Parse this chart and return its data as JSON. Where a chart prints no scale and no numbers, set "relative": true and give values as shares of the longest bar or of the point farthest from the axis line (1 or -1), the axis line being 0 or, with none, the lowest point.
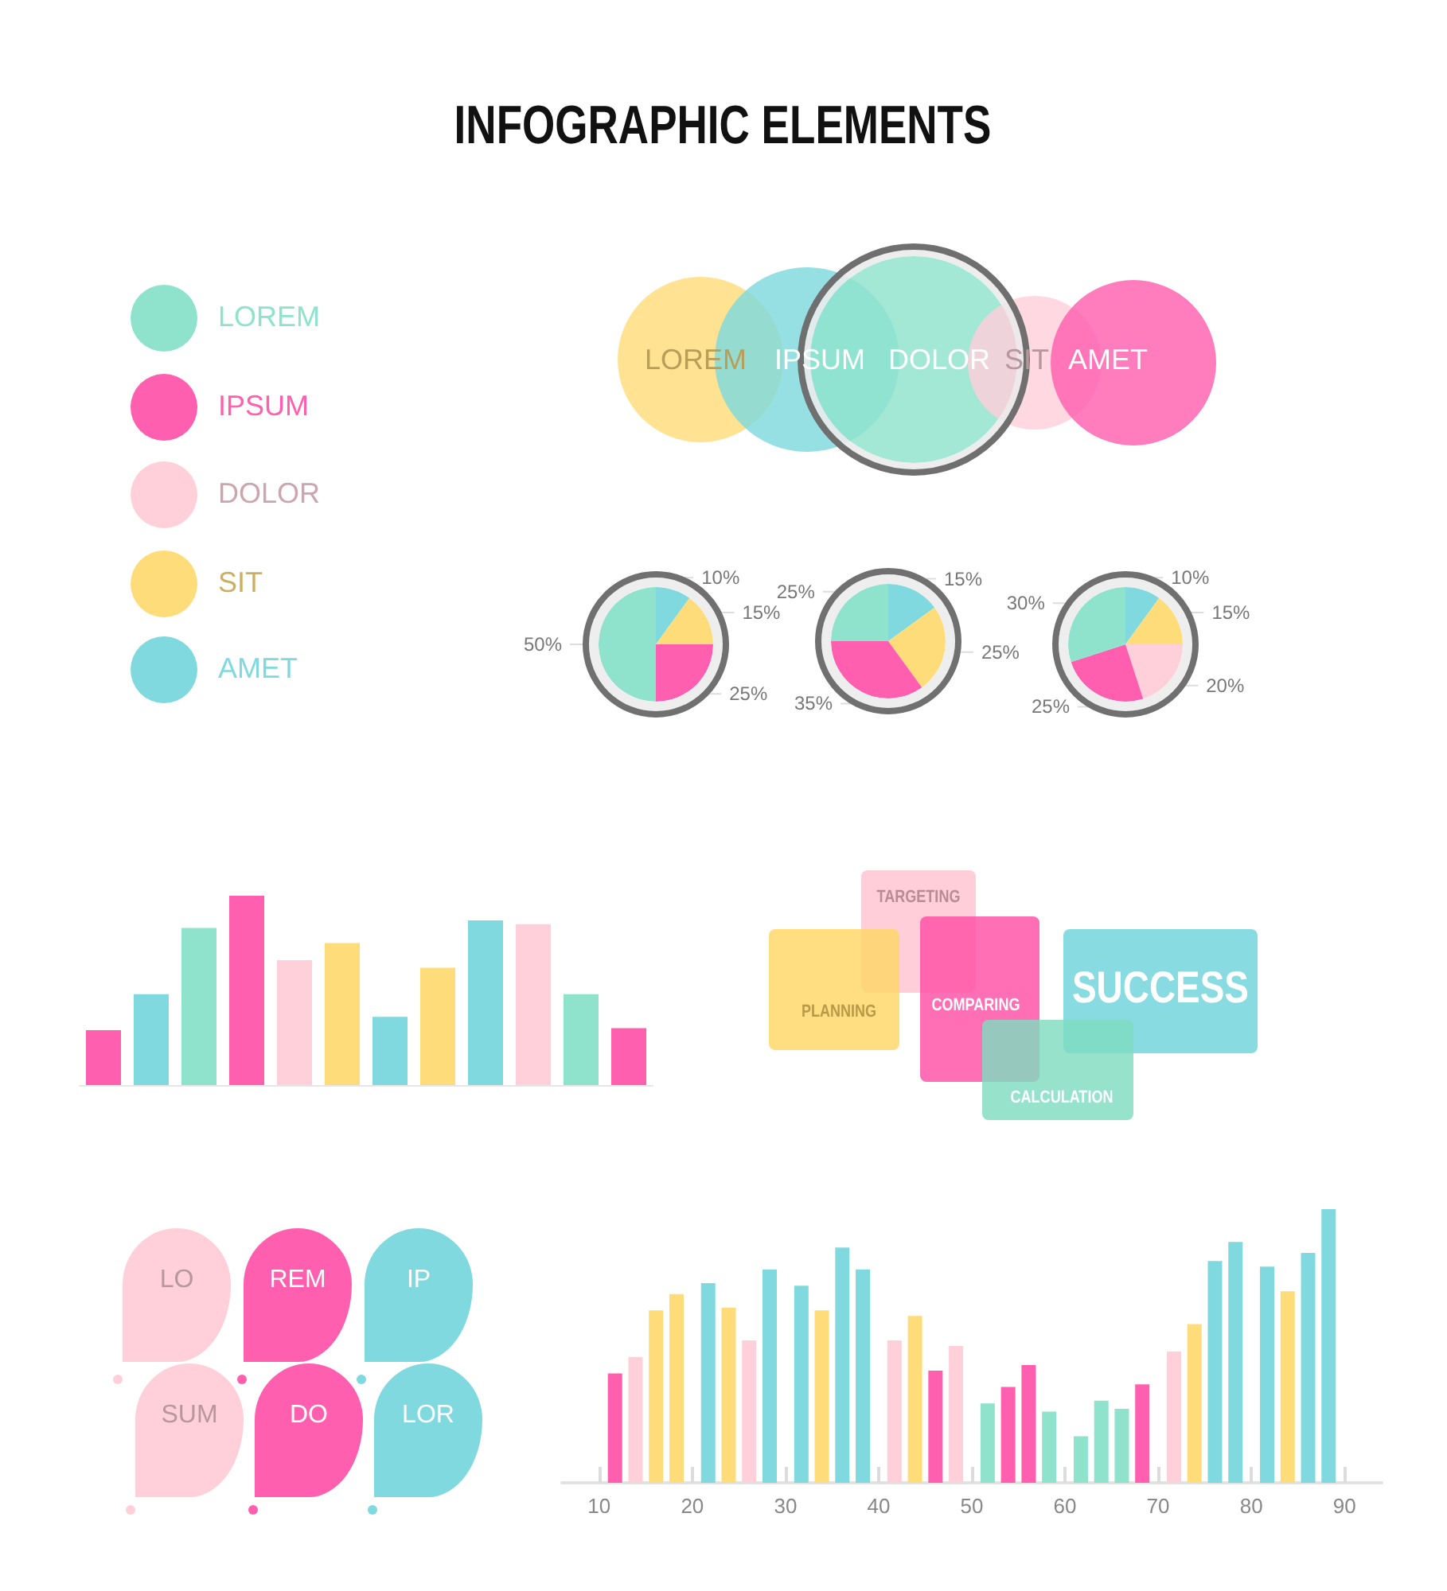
{
  "chart_data": [
    {
      "type": "other",
      "title": "INFOGRAPHIC ELEMENTS",
      "categories": [
        "LOREM",
        "IPSUM",
        "DOLOR",
        "SIT",
        "AMET"
      ],
      "colors": [
        "#8fe3cc",
        "#ff5fae",
        "#ffd0da",
        "#ffdc7a",
        "#7fd9de"
      ]
    },
    {
      "type": "other",
      "categories": [
        "LOREM",
        "IPSUM",
        "DOLOR",
        "SIT",
        "AMET"
      ],
      "colors": [
        "#ffdc7a",
        "#7fd9de",
        "#8fe3cc",
        "#ffd0da",
        "#ff5fae"
      ]
    },
    {
      "type": "pie",
      "categories": [
        null,
        null,
        null,
        null
      ],
      "values": [
        10,
        15,
        25,
        50
      ],
      "colors": [
        "#7fd9de",
        "#ffdc7a",
        "#ff5fae",
        "#8fe3cc"
      ],
      "value_labels": [
        "10%",
        "15%",
        "25%",
        "50%"
      ]
    },
    {
      "type": "pie",
      "categories": [
        null,
        null,
        null,
        null
      ],
      "values": [
        15,
        25,
        35,
        25
      ],
      "colors": [
        "#7fd9de",
        "#ffdc7a",
        "#ff5fae",
        "#8fe3cc"
      ],
      "value_labels": [
        "15%",
        "25%",
        "35%",
        "25%"
      ]
    },
    {
      "type": "pie",
      "categories": [
        null,
        null,
        null,
        null,
        null
      ],
      "values": [
        10,
        15,
        20,
        25,
        30
      ],
      "colors": [
        "#7fd9de",
        "#ffdc7a",
        "#ffd0da",
        "#ff5fae",
        "#8fe3cc"
      ],
      "value_labels": [
        "10%",
        "15%",
        "20%",
        "25%",
        "30%"
      ]
    },
    {
      "type": "bar",
      "relative": true,
      "categories": [
        null,
        null,
        null,
        null,
        null,
        null,
        null,
        null,
        null,
        null,
        null,
        null
      ],
      "values": [
        0.29,
        0.48,
        0.83,
        1,
        0.66,
        0.75,
        0.36,
        0.62,
        0.87,
        0.85,
        0.48,
        0.3
      ],
      "colors": [
        "#ff5fae",
        "#7fd9de",
        "#8fe3cc",
        "#ff5fae",
        "#ffd0da",
        "#ffdc7a",
        "#7fd9de",
        "#ffdc7a",
        "#7fd9de",
        "#ffd0da",
        "#8fe3cc",
        "#ff5fae"
      ]
    },
    {
      "type": "other",
      "categories": [
        "TARGETING",
        "PLANNING",
        "COMPARING",
        "SUCCESS",
        "CALCULATION"
      ],
      "colors": [
        "#ffc3d1",
        "#ffd766",
        "#ff4fa5",
        "#6dd3da",
        "#7fdcc0"
      ]
    },
    {
      "type": "other",
      "categories": [
        "LO",
        "REM",
        "IP",
        "SUM",
        "DO",
        "LOR"
      ],
      "colors": [
        "#ffd0da",
        "#ff5fae",
        "#7fd9de",
        "#ffd0da",
        "#ff5fae",
        "#7fd9de"
      ]
    },
    {
      "type": "bar",
      "relative": true,
      "x": [
        11.7,
        13.9,
        16.1,
        18.3,
        21.7,
        23.9,
        26.1,
        28.3,
        31.7,
        33.9,
        36.1,
        38.3,
        41.7,
        43.9,
        46.1,
        48.3,
        51.7,
        53.9,
        56.1,
        58.3,
        61.7,
        63.9,
        66.1,
        68.3,
        71.7,
        73.9,
        76.1,
        78.3,
        81.7,
        83.9,
        86.1,
        88.3
      ],
      "values": [
        0.4,
        0.46,
        0.63,
        0.69,
        0.73,
        0.64,
        0.52,
        0.78,
        0.72,
        0.63,
        0.86,
        0.78,
        0.52,
        0.61,
        0.41,
        0.5,
        0.29,
        0.35,
        0.43,
        0.26,
        0.17,
        0.3,
        0.27,
        0.36,
        0.48,
        0.58,
        0.81,
        0.88,
        0.79,
        0.7,
        0.84,
        1
      ],
      "colors": [
        "#ff5fae",
        "#ffd0da",
        "#ffdc7a",
        "#ffdc7a",
        "#7fd9de",
        "#ffdc7a",
        "#ffd0da",
        "#7fd9de",
        "#7fd9de",
        "#ffdc7a",
        "#7fd9de",
        "#7fd9de",
        "#ffd0da",
        "#ffdc7a",
        "#ff5fae",
        "#ffd0da",
        "#8fe3cc",
        "#ff5fae",
        "#ff5fae",
        "#8fe3cc",
        "#8fe3cc",
        "#8fe3cc",
        "#8fe3cc",
        "#ff5fae",
        "#ffd0da",
        "#ffdc7a",
        "#7fd9de",
        "#7fd9de",
        "#7fd9de",
        "#ffdc7a",
        "#7fd9de",
        "#7fd9de"
      ],
      "xlim": [
        6,
        94
      ],
      "xticks": [
        10,
        20,
        30,
        40,
        50,
        60,
        70,
        80,
        90
      ]
    }
  ]
}
